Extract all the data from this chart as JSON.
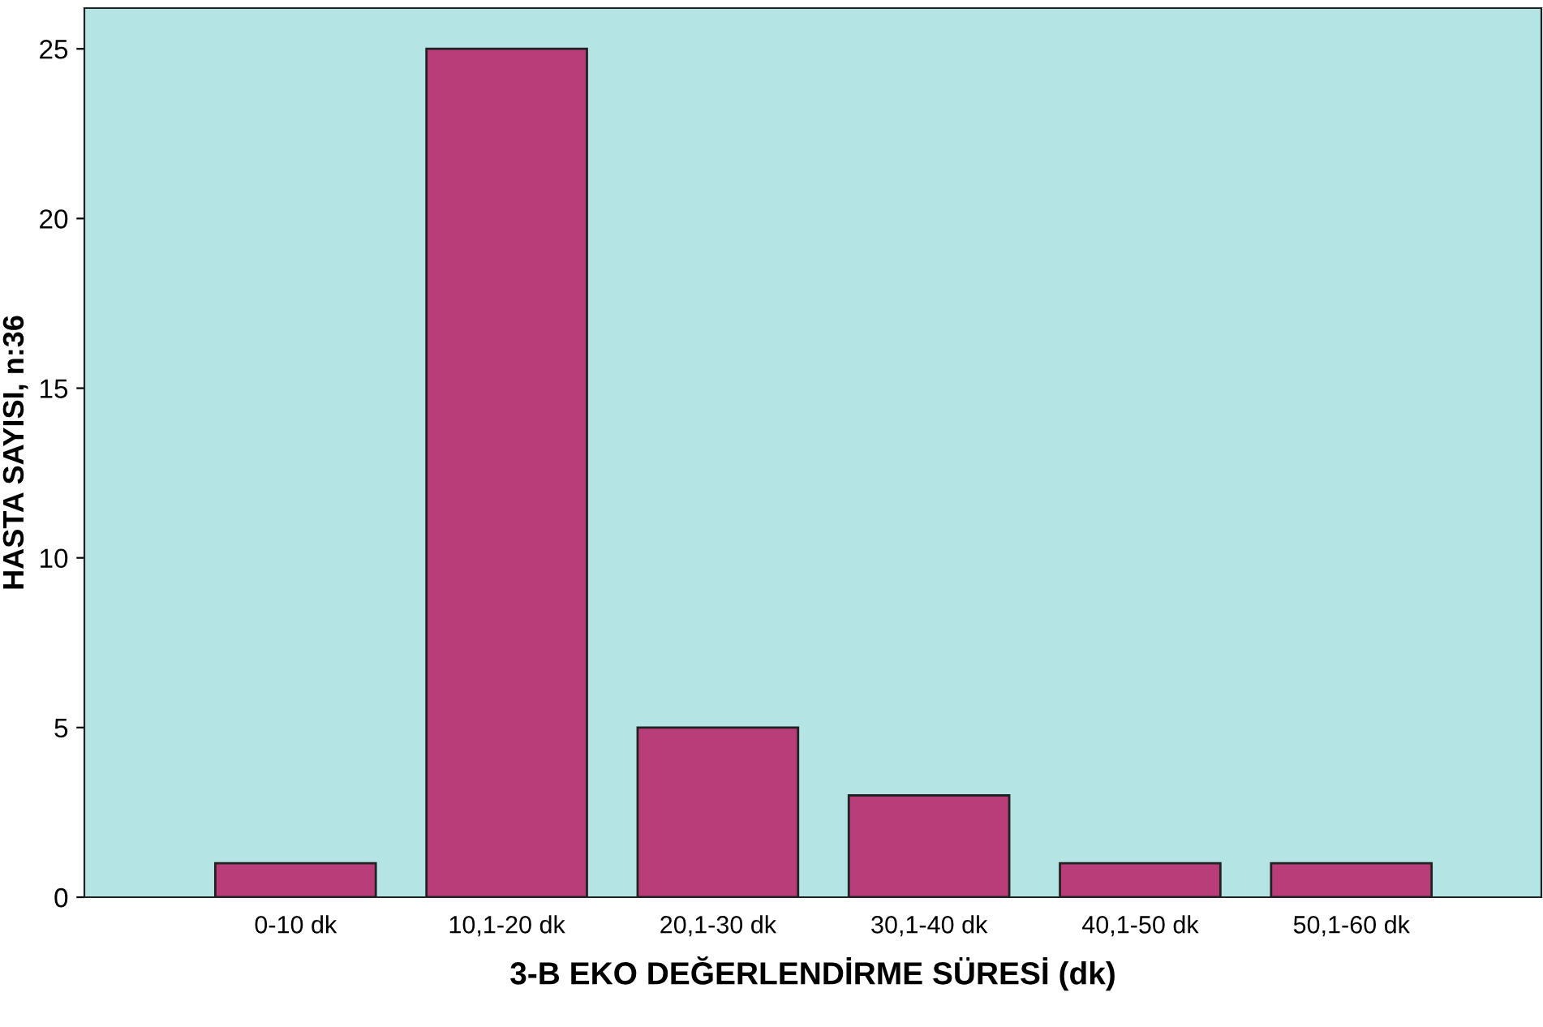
{
  "chart_data": {
    "type": "bar",
    "xlabel": "3-B EKO DEĞERLENDİRME SÜRESİ (dk)",
    "ylabel": "HASTA SAYISI, n:36",
    "categories": [
      "0-10 dk",
      "10,1-20 dk",
      "20,1-30 dk",
      "30,1-40 dk",
      "40,1-50 dk",
      "50,1-60 dk"
    ],
    "values": [
      1,
      25,
      5,
      3,
      1,
      1
    ],
    "color": "#b83d78",
    "ylim": [
      0,
      26.2
    ],
    "yticks": [
      0,
      5,
      10,
      15,
      20,
      25
    ],
    "grid": false,
    "legend": false
  }
}
